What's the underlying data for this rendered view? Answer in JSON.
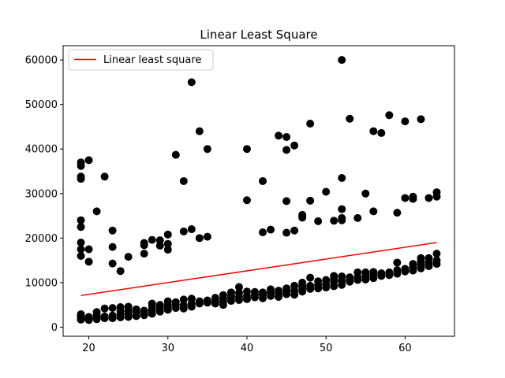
{
  "chart_data": {
    "type": "scatter",
    "title": "Linear Least Square",
    "xlabel": "",
    "ylabel": "",
    "xlim": [
      16.75,
      66.25
    ],
    "ylim": [
      -2040,
      63200
    ],
    "xticks": [
      20,
      30,
      40,
      50,
      60
    ],
    "yticks": [
      0,
      10000,
      20000,
      30000,
      40000,
      50000,
      60000
    ],
    "grid": false,
    "legend": {
      "entries": [
        "Linear least square"
      ],
      "placement": "top-left"
    },
    "colors": {
      "points": "#000000",
      "line": "#ff0000"
    },
    "series": [
      {
        "type": "scatter",
        "points": [
          [
            19,
            1700
          ],
          [
            19,
            2000
          ],
          [
            19,
            2300
          ],
          [
            19,
            2600
          ],
          [
            19,
            2900
          ],
          [
            19,
            16000
          ],
          [
            19,
            17500
          ],
          [
            19,
            19000
          ],
          [
            19,
            22500
          ],
          [
            19,
            24000
          ],
          [
            19,
            33300
          ],
          [
            19,
            33800
          ],
          [
            19,
            36200
          ],
          [
            19,
            37000
          ],
          [
            20,
            1600
          ],
          [
            20,
            1900
          ],
          [
            20,
            2300
          ],
          [
            20,
            14700
          ],
          [
            20,
            17500
          ],
          [
            20,
            37500
          ],
          [
            21,
            1800
          ],
          [
            21,
            2200
          ],
          [
            21,
            2700
          ],
          [
            21,
            3400
          ],
          [
            21,
            26000
          ],
          [
            22,
            2000
          ],
          [
            22,
            2400
          ],
          [
            22,
            4200
          ],
          [
            22,
            33800
          ],
          [
            23,
            2000
          ],
          [
            23,
            2600
          ],
          [
            23,
            4300
          ],
          [
            23,
            14300
          ],
          [
            23,
            18000
          ],
          [
            23,
            21700
          ],
          [
            24,
            2200
          ],
          [
            24,
            3000
          ],
          [
            24,
            3600
          ],
          [
            24,
            4500
          ],
          [
            24,
            12600
          ],
          [
            25,
            2300
          ],
          [
            25,
            2900
          ],
          [
            25,
            3700
          ],
          [
            25,
            4600
          ],
          [
            25,
            15800
          ],
          [
            26,
            2500
          ],
          [
            26,
            3400
          ],
          [
            26,
            4000
          ],
          [
            27,
            2700
          ],
          [
            27,
            3200
          ],
          [
            27,
            3700
          ],
          [
            27,
            16500
          ],
          [
            27,
            18400
          ],
          [
            27,
            18900
          ],
          [
            28,
            3000
          ],
          [
            28,
            3800
          ],
          [
            28,
            4600
          ],
          [
            28,
            5300
          ],
          [
            28,
            19600
          ],
          [
            29,
            3500
          ],
          [
            29,
            4300
          ],
          [
            29,
            5000
          ],
          [
            29,
            18300
          ],
          [
            29,
            19500
          ],
          [
            30,
            3900
          ],
          [
            30,
            4500
          ],
          [
            30,
            5000
          ],
          [
            30,
            5800
          ],
          [
            30,
            17400
          ],
          [
            30,
            18700
          ],
          [
            30,
            20800
          ],
          [
            31,
            4300
          ],
          [
            31,
            5100
          ],
          [
            31,
            5600
          ],
          [
            31,
            38700
          ],
          [
            32,
            4200
          ],
          [
            32,
            4900
          ],
          [
            32,
            6200
          ],
          [
            32,
            21500
          ],
          [
            32,
            32800
          ],
          [
            33,
            4600
          ],
          [
            33,
            5300
          ],
          [
            33,
            6400
          ],
          [
            33,
            22000
          ],
          [
            33,
            55000
          ],
          [
            34,
            5300
          ],
          [
            34,
            5800
          ],
          [
            34,
            20000
          ],
          [
            34,
            44000
          ],
          [
            35,
            5500
          ],
          [
            35,
            6000
          ],
          [
            35,
            20300
          ],
          [
            35,
            40000
          ],
          [
            36,
            5300
          ],
          [
            36,
            5800
          ],
          [
            36,
            6600
          ],
          [
            37,
            5000
          ],
          [
            37,
            5700
          ],
          [
            37,
            6400
          ],
          [
            37,
            7200
          ],
          [
            38,
            5900
          ],
          [
            38,
            6600
          ],
          [
            38,
            7000
          ],
          [
            38,
            7800
          ],
          [
            39,
            6100
          ],
          [
            39,
            6800
          ],
          [
            39,
            7700
          ],
          [
            39,
            9000
          ],
          [
            40,
            6300
          ],
          [
            40,
            7000
          ],
          [
            40,
            8000
          ],
          [
            40,
            28500
          ],
          [
            40,
            40000
          ],
          [
            41,
            6700
          ],
          [
            41,
            7200
          ],
          [
            41,
            7900
          ],
          [
            42,
            6500
          ],
          [
            42,
            7300
          ],
          [
            42,
            7800
          ],
          [
            42,
            21300
          ],
          [
            42,
            32800
          ],
          [
            43,
            7000
          ],
          [
            43,
            7700
          ],
          [
            43,
            8500
          ],
          [
            43,
            21900
          ],
          [
            44,
            6800
          ],
          [
            44,
            7500
          ],
          [
            44,
            8200
          ],
          [
            44,
            43000
          ],
          [
            45,
            7400
          ],
          [
            45,
            8000
          ],
          [
            45,
            8700
          ],
          [
            45,
            21200
          ],
          [
            45,
            28300
          ],
          [
            45,
            39800
          ],
          [
            45,
            42700
          ],
          [
            46,
            7300
          ],
          [
            46,
            8200
          ],
          [
            46,
            9300
          ],
          [
            46,
            21700
          ],
          [
            46,
            40800
          ],
          [
            47,
            8000
          ],
          [
            47,
            8700
          ],
          [
            47,
            9300
          ],
          [
            47,
            10000
          ],
          [
            47,
            24600
          ],
          [
            47,
            25200
          ],
          [
            48,
            8600
          ],
          [
            48,
            9300
          ],
          [
            48,
            11100
          ],
          [
            48,
            28400
          ],
          [
            48,
            45700
          ],
          [
            49,
            8700
          ],
          [
            49,
            9400
          ],
          [
            49,
            10300
          ],
          [
            49,
            23800
          ],
          [
            50,
            8900
          ],
          [
            50,
            9700
          ],
          [
            50,
            10600
          ],
          [
            50,
            30400
          ],
          [
            51,
            9200
          ],
          [
            51,
            10200
          ],
          [
            51,
            10800
          ],
          [
            51,
            11500
          ],
          [
            51,
            23900
          ],
          [
            52,
            9500
          ],
          [
            52,
            10400
          ],
          [
            52,
            11400
          ],
          [
            52,
            24000
          ],
          [
            52,
            24500
          ],
          [
            52,
            26500
          ],
          [
            52,
            33500
          ],
          [
            52,
            60000
          ],
          [
            53,
            10200
          ],
          [
            53,
            10700
          ],
          [
            53,
            11200
          ],
          [
            53,
            46800
          ],
          [
            54,
            10600
          ],
          [
            54,
            11200
          ],
          [
            54,
            12300
          ],
          [
            54,
            24500
          ],
          [
            55,
            10700
          ],
          [
            55,
            11500
          ],
          [
            55,
            12300
          ],
          [
            55,
            30000
          ],
          [
            56,
            11000
          ],
          [
            56,
            11800
          ],
          [
            56,
            12400
          ],
          [
            56,
            26000
          ],
          [
            56,
            44000
          ],
          [
            57,
            11500
          ],
          [
            57,
            12100
          ],
          [
            57,
            43600
          ],
          [
            58,
            11700
          ],
          [
            58,
            12300
          ],
          [
            58,
            47600
          ],
          [
            59,
            12000
          ],
          [
            59,
            12800
          ],
          [
            59,
            14500
          ],
          [
            59,
            25700
          ],
          [
            60,
            12500
          ],
          [
            60,
            13100
          ],
          [
            60,
            29000
          ],
          [
            60,
            46200
          ],
          [
            61,
            12700
          ],
          [
            61,
            13500
          ],
          [
            61,
            14200
          ],
          [
            61,
            28800
          ],
          [
            61,
            29300
          ],
          [
            62,
            13200
          ],
          [
            62,
            14000
          ],
          [
            62,
            14800
          ],
          [
            62,
            15500
          ],
          [
            62,
            46700
          ],
          [
            63,
            13700
          ],
          [
            63,
            14500
          ],
          [
            63,
            15500
          ],
          [
            63,
            29000
          ],
          [
            64,
            14200
          ],
          [
            64,
            15000
          ],
          [
            64,
            16500
          ],
          [
            64,
            29300
          ],
          [
            64,
            30300
          ]
        ]
      },
      {
        "type": "line",
        "name": "Linear least square",
        "x": [
          19,
          64
        ],
        "y": [
          7100,
          19000
        ]
      }
    ]
  }
}
